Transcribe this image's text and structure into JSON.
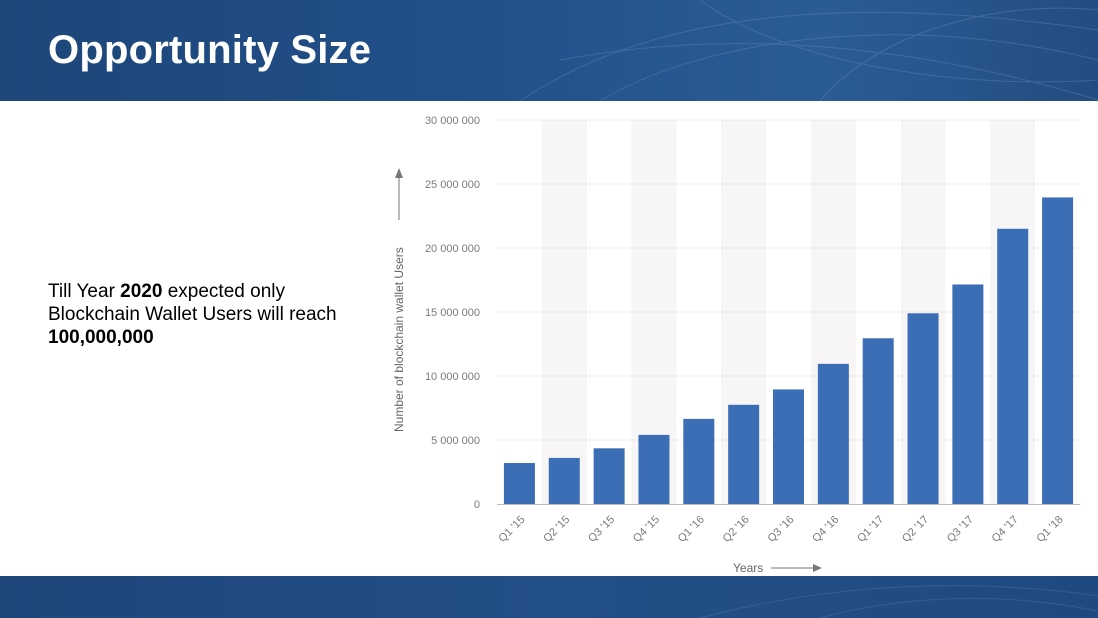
{
  "slide": {
    "title": "Opportunity Size",
    "note": {
      "part1": "Till Year ",
      "year": "2020",
      "part2": " expected only Blockchain Wallet Users will reach ",
      "target": "100,000,000"
    }
  },
  "colors": {
    "band": "#22508a",
    "bar": "#3b6eb5",
    "stripe": "#f7f5f5",
    "grid": "#dcdcdc"
  },
  "chart_data": {
    "type": "bar",
    "categories": [
      "Q1 '15",
      "Q2 '15",
      "Q3 '15",
      "Q4 '15",
      "Q1 '16",
      "Q2 '16",
      "Q3 '16",
      "Q4 '16",
      "Q1 '17",
      "Q2 '17",
      "Q3 '17",
      "Q4 '17",
      "Q1 '18"
    ],
    "values": [
      3200000,
      3600000,
      4350000,
      5400000,
      6650000,
      7750000,
      8950000,
      10950000,
      12950000,
      14900000,
      17150000,
      21500000,
      23950000
    ],
    "xlabel": "Years",
    "ylabel": "Number of blockchain wallet Users",
    "ylim": [
      0,
      30000000
    ],
    "yticks": [
      0,
      5000000,
      10000000,
      15000000,
      20000000,
      25000000,
      30000000
    ],
    "ytick_labels": [
      "0",
      "5 000 000",
      "10 000 000",
      "15 000 000",
      "20 000 000",
      "25 000 000",
      "30 000 000"
    ],
    "grid": true,
    "legend": "none"
  }
}
